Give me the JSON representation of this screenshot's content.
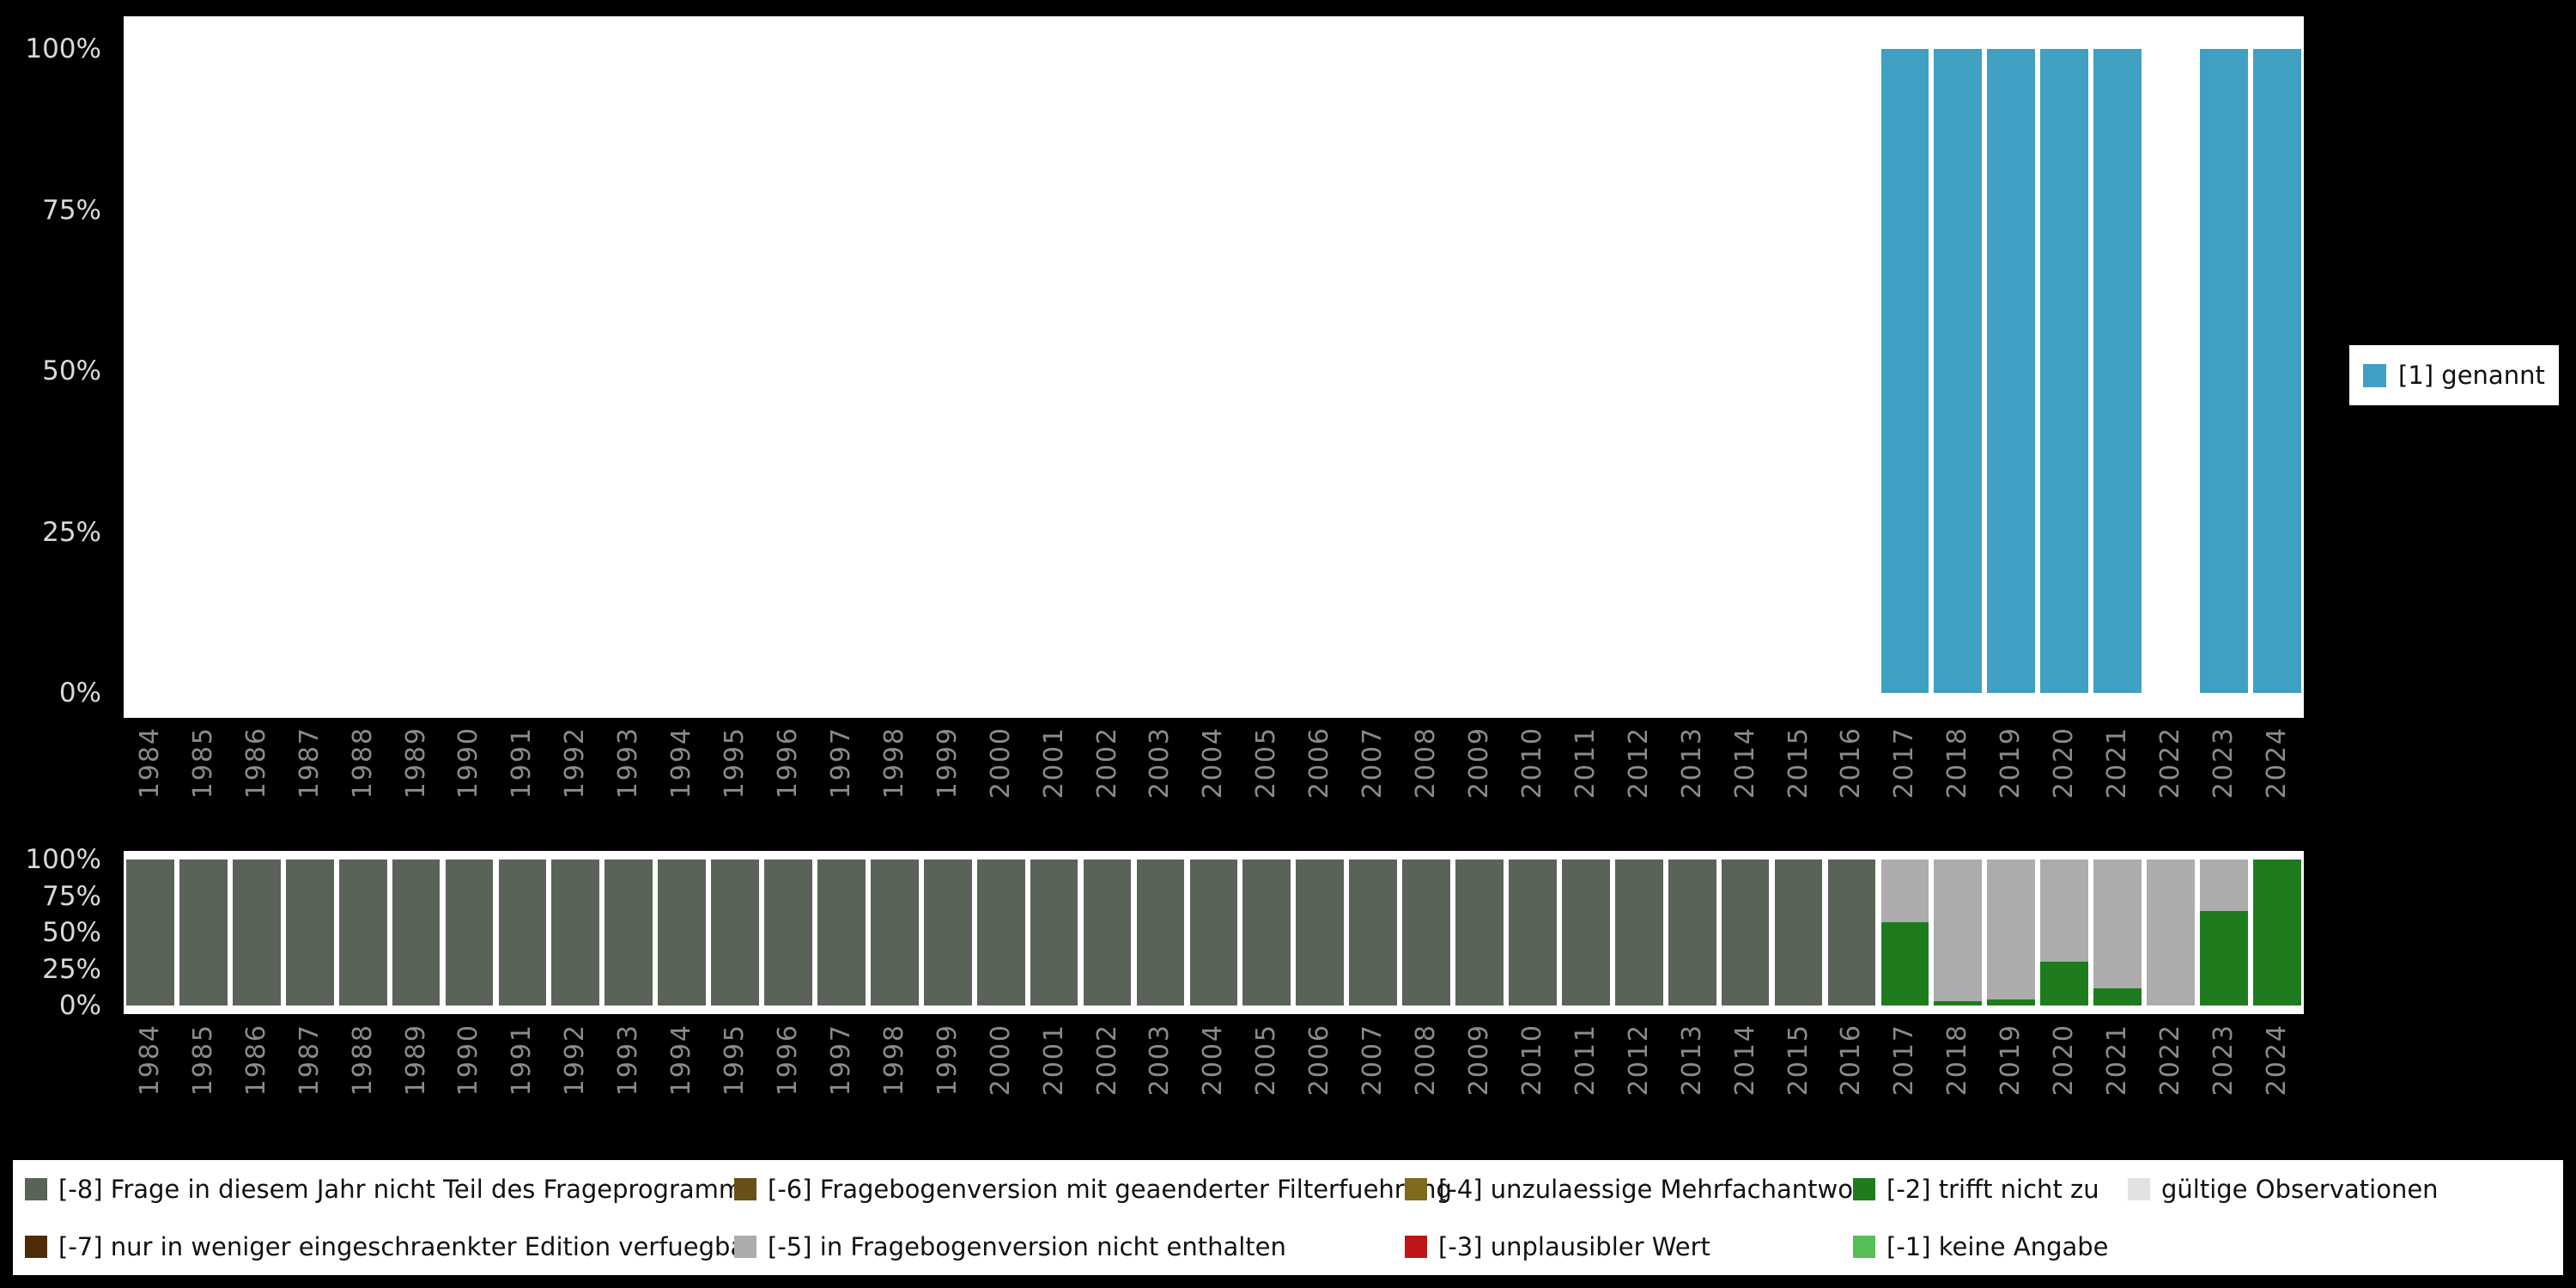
{
  "background_color": "#000000",
  "colors": {
    "1": "#3FA0C2",
    "-8": "#5A6357",
    "-7": "#4E2B0A",
    "-6": "#6B4F1A",
    "-5": "#ACACAC",
    "-4": "#7F6A1E",
    "-3": "#BE1617",
    "-2": "#1E7C1E",
    "-1": "#55BE55",
    "valid": "#E2E2E2"
  },
  "top_legend": {
    "key": "1",
    "label": "[1] genannt"
  },
  "bottom_legend": {
    "items": [
      {
        "key": "-8",
        "label": "[-8] Frage in diesem Jahr nicht Teil des Frageprogramms"
      },
      {
        "key": "-6",
        "label": "[-6] Fragebogenversion mit geaenderter Filterfuehrung"
      },
      {
        "key": "-4",
        "label": "[-4] unzulaessige Mehrfachantwort"
      },
      {
        "key": "-2",
        "label": "[-2] trifft nicht zu"
      },
      {
        "key": "valid",
        "label": "gültige Observationen"
      },
      {
        "key": "-7",
        "label": "[-7] nur in weniger eingeschraenkter Edition verfuegbar"
      },
      {
        "key": "-5",
        "label": "[-5] in Fragebogenversion nicht enthalten"
      },
      {
        "key": "-3",
        "label": "[-3] unplausibler Wert"
      },
      {
        "key": "-1",
        "label": "[-1] keine Angabe"
      }
    ]
  },
  "chart_data": [
    {
      "id": "top",
      "type": "bar",
      "title": "",
      "xlabel": "",
      "ylabel": "",
      "ylim": [
        0,
        100
      ],
      "grid": false,
      "legend_position": "right",
      "legend": [
        {
          "label": "[1] genannt",
          "color": "#3FA0C2"
        }
      ],
      "yticks": [
        "100%",
        "75%",
        "50%",
        "25%",
        "0%"
      ],
      "x": [
        1984,
        1985,
        1986,
        1987,
        1988,
        1989,
        1990,
        1991,
        1992,
        1993,
        1994,
        1995,
        1996,
        1997,
        1998,
        1999,
        2000,
        2001,
        2002,
        2003,
        2004,
        2005,
        2006,
        2007,
        2008,
        2009,
        2010,
        2011,
        2012,
        2013,
        2014,
        2015,
        2016,
        2017,
        2018,
        2019,
        2020,
        2021,
        2022,
        2023,
        2024
      ],
      "stacks": [
        [],
        [],
        [],
        [],
        [],
        [],
        [],
        [],
        [],
        [],
        [],
        [],
        [],
        [],
        [],
        [],
        [],
        [],
        [],
        [],
        [],
        [],
        [],
        [],
        [],
        [],
        [],
        [],
        [],
        [],
        [],
        [],
        [],
        [
          [
            "1",
            100
          ]
        ],
        [
          [
            "1",
            100
          ]
        ],
        [
          [
            "1",
            100
          ]
        ],
        [
          [
            "1",
            100
          ]
        ],
        [
          [
            "1",
            100
          ]
        ],
        [],
        [
          [
            "1",
            100
          ]
        ],
        [
          [
            "1",
            100
          ]
        ]
      ]
    },
    {
      "id": "bottom",
      "type": "stacked-bar-100",
      "title": "",
      "xlabel": "",
      "ylabel": "",
      "ylim": [
        0,
        100
      ],
      "grid": false,
      "legend_position": "bottom",
      "yticks": [
        "100%",
        "75%",
        "50%",
        "25%",
        "0%"
      ],
      "x": [
        1984,
        1985,
        1986,
        1987,
        1988,
        1989,
        1990,
        1991,
        1992,
        1993,
        1994,
        1995,
        1996,
        1997,
        1998,
        1999,
        2000,
        2001,
        2002,
        2003,
        2004,
        2005,
        2006,
        2007,
        2008,
        2009,
        2010,
        2011,
        2012,
        2013,
        2014,
        2015,
        2016,
        2017,
        2018,
        2019,
        2020,
        2021,
        2022,
        2023,
        2024
      ],
      "stacks": [
        [
          [
            "-8",
            100
          ]
        ],
        [
          [
            "-8",
            100
          ]
        ],
        [
          [
            "-8",
            100
          ]
        ],
        [
          [
            "-8",
            100
          ]
        ],
        [
          [
            "-8",
            100
          ]
        ],
        [
          [
            "-8",
            100
          ]
        ],
        [
          [
            "-8",
            100
          ]
        ],
        [
          [
            "-8",
            100
          ]
        ],
        [
          [
            "-8",
            100
          ]
        ],
        [
          [
            "-8",
            100
          ]
        ],
        [
          [
            "-8",
            100
          ]
        ],
        [
          [
            "-8",
            100
          ]
        ],
        [
          [
            "-8",
            100
          ]
        ],
        [
          [
            "-8",
            100
          ]
        ],
        [
          [
            "-8",
            100
          ]
        ],
        [
          [
            "-8",
            100
          ]
        ],
        [
          [
            "-8",
            100
          ]
        ],
        [
          [
            "-8",
            100
          ]
        ],
        [
          [
            "-8",
            100
          ]
        ],
        [
          [
            "-8",
            100
          ]
        ],
        [
          [
            "-8",
            100
          ]
        ],
        [
          [
            "-8",
            100
          ]
        ],
        [
          [
            "-8",
            100
          ]
        ],
        [
          [
            "-8",
            100
          ]
        ],
        [
          [
            "-8",
            100
          ]
        ],
        [
          [
            "-8",
            100
          ]
        ],
        [
          [
            "-8",
            100
          ]
        ],
        [
          [
            "-8",
            100
          ]
        ],
        [
          [
            "-8",
            100
          ]
        ],
        [
          [
            "-8",
            100
          ]
        ],
        [
          [
            "-8",
            100
          ]
        ],
        [
          [
            "-8",
            100
          ]
        ],
        [
          [
            "-8",
            100
          ]
        ],
        [
          [
            "-2",
            57
          ],
          [
            "-5",
            43
          ]
        ],
        [
          [
            "-2",
            3
          ],
          [
            "-5",
            97
          ]
        ],
        [
          [
            "-2",
            4
          ],
          [
            "-5",
            96
          ]
        ],
        [
          [
            "-2",
            30
          ],
          [
            "-5",
            70
          ]
        ],
        [
          [
            "-2",
            12
          ],
          [
            "-5",
            88
          ]
        ],
        [
          [
            "-5",
            100
          ]
        ],
        [
          [
            "-2",
            65
          ],
          [
            "-5",
            35
          ]
        ],
        [
          [
            "-2",
            100
          ]
        ]
      ]
    }
  ]
}
